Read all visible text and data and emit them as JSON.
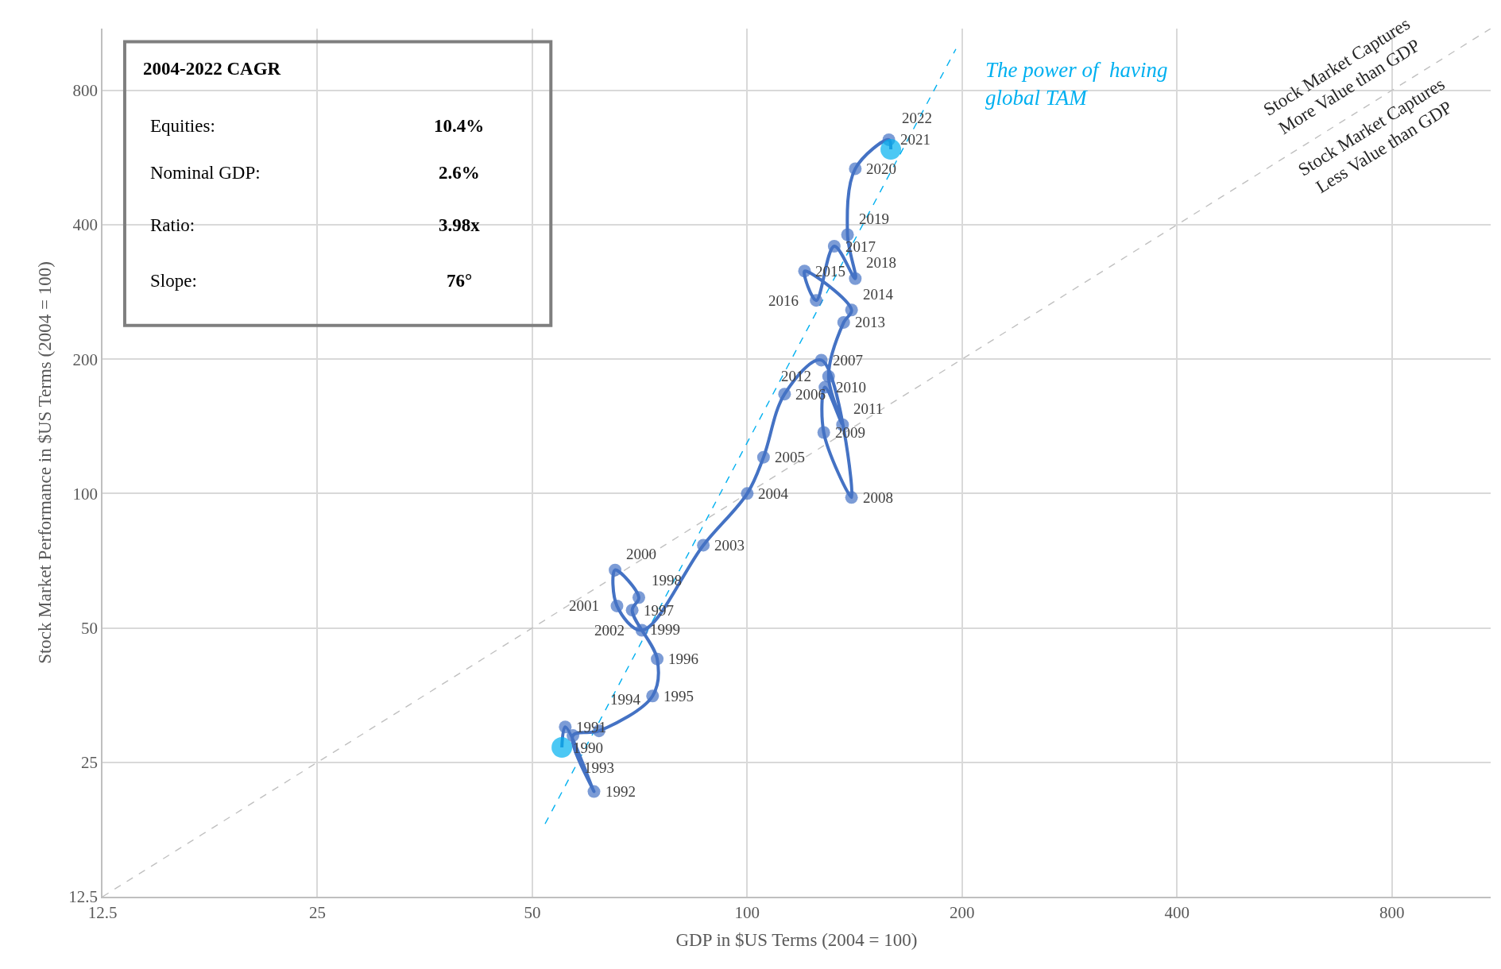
{
  "chart_data": {
    "type": "line",
    "xlabel": "GDP in $US Terms (2004 = 100)",
    "ylabel": "Stock Market Performance in $US Terms (2004 = 100)",
    "log": "xy",
    "grid": true,
    "marker": "none",
    "xlim": [
      12.5,
      1100
    ],
    "ylim": [
      12.5,
      1100
    ],
    "xticks": [
      {
        "value": 12.5,
        "label": "12.5"
      },
      25,
      50,
      100,
      200,
      400,
      800
    ],
    "yticks": [
      {
        "value": 12.5,
        "label": "12.5"
      },
      25,
      50,
      100,
      200,
      400,
      800
    ],
    "series": [
      {
        "color": "#c0c0c0",
        "line_style": "dashed",
        "x": [
          12.5,
          1100
        ],
        "values": [
          12.5,
          1100
        ]
      },
      {
        "color": "#00b0f0",
        "line_style": "dashed",
        "x": [
          52.1,
          196
        ],
        "values": [
          18.2,
          990
        ]
      },
      {
        "color": "#4472c4",
        "line_style": "solid",
        "marker": "circle",
        "colors": [
          "#00b0f0",
          "#4472c4",
          "#4472c4",
          "#4472c4",
          "#4472c4",
          "#4472c4",
          "#4472c4",
          "#4472c4",
          "#4472c4",
          "#4472c4",
          "#4472c4",
          "#4472c4",
          "#4472c4",
          "#4472c4",
          "#4472c4",
          "#4472c4",
          "#4472c4",
          "#4472c4",
          "#4472c4",
          "#4472c4",
          "#4472c4",
          "#4472c4",
          "#4472c4",
          "#4472c4",
          "#4472c4",
          "#4472c4",
          "#4472c4",
          "#4472c4",
          "#4472c4",
          "#4472c4",
          "#4472c4",
          "#4472c4",
          "#00b0f0"
        ],
        "x": [
          55,
          55.6,
          61,
          57,
          62,
          73.7,
          74.8,
          69,
          null,
          70.5,
          65.3,
          65.7,
          71.2,
          86.8,
          100,
          105.4,
          112.8,
          127,
          140,
          128,
          128.5,
          136,
          130,
          136.5,
          140,
          120.3,
          124.9,
          132.4,
          141.7,
          138.2,
          141.7,
          157.9,
          158.9
        ],
        "values": [
          27,
          30,
          21.5,
          28.7,
          29.4,
          35.2,
          42.6,
          54.8,
          null,
          58.5,
          67.4,
          56,
          49.4,
          76.6,
          100,
          120.6,
          167,
          199,
          98,
          137,
          173,
          142.6,
          183,
          241.7,
          257.7,
          315,
          270.8,
          358,
          303,
          380,
          534,
          620,
          590
        ]
      }
    ],
    "annotations": [
      "2004-2022 CAGR",
      "Equities:",
      "10.4%",
      "Nominal GDP:",
      "2.6%",
      "Ratio:",
      "3.98x",
      "Slope:",
      "76°",
      "The power of  having\nglobal TAM",
      "Stock Market Captures\nMore Value than GDP",
      "Stock Market Captures\nLess Value than GDP",
      {
        "text": "1990",
        "x": 55,
        "y": 27
      },
      {
        "text": "1991",
        "x": 55.6,
        "y": 30
      },
      {
        "text": "1992",
        "x": 61,
        "y": 21.5
      },
      {
        "text": "1993",
        "x": 57,
        "y": 28.7
      },
      {
        "text": "1994",
        "x": 62,
        "y": 29.4
      },
      {
        "text": "1995",
        "x": 73.7,
        "y": 35.2
      },
      {
        "text": "1996",
        "x": 74.8,
        "y": 42.6
      },
      {
        "text": "1997",
        "x": 69,
        "y": 54.8
      },
      {
        "text": "1998",
        "x": 70.8,
        "y": 59
      },
      {
        "text": "1999",
        "x": 70.5,
        "y": 58.5
      },
      {
        "text": "2000",
        "x": 65.3,
        "y": 67.4
      },
      {
        "text": "2001",
        "x": 65.7,
        "y": 56
      },
      {
        "text": "2002",
        "x": 71.2,
        "y": 49.4
      },
      {
        "text": "2003",
        "x": 86.8,
        "y": 76.6
      },
      {
        "text": "2004",
        "x": 100,
        "y": 100
      },
      {
        "text": "2005",
        "x": 105.4,
        "y": 120.6
      },
      {
        "text": "2006",
        "x": 112.8,
        "y": 167
      },
      {
        "text": "2007",
        "x": 127,
        "y": 199
      },
      {
        "text": "2008",
        "x": 140,
        "y": 98
      },
      {
        "text": "2009",
        "x": 128,
        "y": 137
      },
      {
        "text": "2010",
        "x": 128.5,
        "y": 173
      },
      {
        "text": "2011",
        "x": 136,
        "y": 142.6
      },
      {
        "text": "2012",
        "x": 130,
        "y": 183
      },
      {
        "text": "2013",
        "x": 136.5,
        "y": 241.7
      },
      {
        "text": "2014",
        "x": 140,
        "y": 257.7
      },
      {
        "text": "2015",
        "x": 120.3,
        "y": 315
      },
      {
        "text": "2016",
        "x": 124.9,
        "y": 270.8
      },
      {
        "text": "2017",
        "x": 132.4,
        "y": 358
      },
      {
        "text": "2018",
        "x": 141.7,
        "y": 303
      },
      {
        "text": "2019",
        "x": 138.2,
        "y": 380
      },
      {
        "text": "2020",
        "x": 141.7,
        "y": 534
      },
      {
        "text": "2021",
        "x": 157.9,
        "y": 620
      },
      {
        "text": "2022",
        "x": 158.9,
        "y": 590
      }
    ]
  }
}
